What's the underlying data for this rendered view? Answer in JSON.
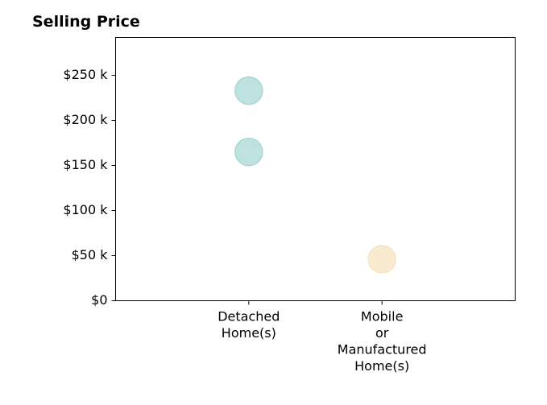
{
  "chart_data": {
    "type": "scatter",
    "title": "Selling Price",
    "xlabel": "",
    "ylabel": "",
    "categories": [
      [
        "Detached",
        "Home(s)"
      ],
      [
        "Mobile",
        "or",
        "Manufactured",
        "Home(s)"
      ]
    ],
    "x_range": [
      -1,
      2
    ],
    "ylim": [
      0,
      292000
    ],
    "yticks": [
      {
        "value": 0,
        "label": "$0"
      },
      {
        "value": 50000,
        "label": "$50 k"
      },
      {
        "value": 100000,
        "label": "$100 k"
      },
      {
        "value": 150000,
        "label": "$150 k"
      },
      {
        "value": 200000,
        "label": "$200 k"
      },
      {
        "value": 250000,
        "label": "$250 k"
      }
    ],
    "points": [
      {
        "category_index": 0,
        "y": 233000,
        "color": "#a8d8d4"
      },
      {
        "category_index": 0,
        "y": 165000,
        "color": "#a8d8d4"
      },
      {
        "category_index": 1,
        "y": 46000,
        "color": "#f5e4c0"
      }
    ],
    "grid": false,
    "legend": "none"
  }
}
